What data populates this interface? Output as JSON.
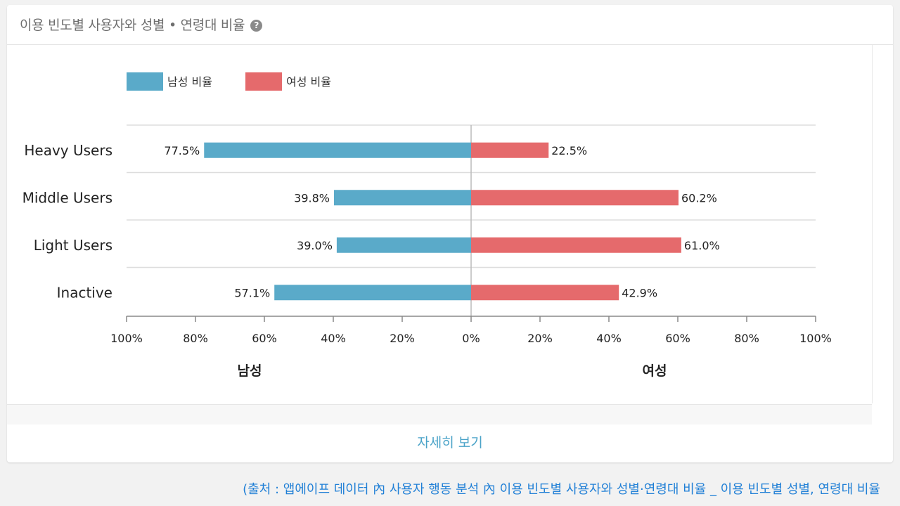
{
  "card": {
    "title": "이용 빈도별 사용자와 성별 • 연령대 비율",
    "help_icon": "question-circle-icon",
    "footer_link": "자세히 보기"
  },
  "source_text": "(출처 : 앱에이프 데이터 內 사용자 행동 분석 內  이용 빈도별 사용자와 성별·연령대 비율 _ 이용 빈도별 성별, 연령대 비율",
  "colors": {
    "male": "#5aaac9",
    "female": "#e56a6c",
    "grid": "#dddddd"
  },
  "chart_data": {
    "type": "bar",
    "orientation": "horizontal-diverging",
    "categories": [
      "Heavy Users",
      "Middle Users",
      "Light Users",
      "Inactive"
    ],
    "series": [
      {
        "name": "남성 비율",
        "values": [
          77.5,
          39.8,
          39.0,
          57.1
        ],
        "labels": [
          "77.5%",
          "39.8%",
          "39.0%",
          "57.1%"
        ]
      },
      {
        "name": "여성 비율",
        "values": [
          22.5,
          60.2,
          61.0,
          42.9
        ],
        "labels": [
          "22.5%",
          "60.2%",
          "61.0%",
          "42.9%"
        ]
      }
    ],
    "x_ticks": [
      "100%",
      "80%",
      "60%",
      "40%",
      "20%",
      "0%",
      "20%",
      "40%",
      "60%",
      "80%",
      "100%"
    ],
    "xlabel_left": "남성",
    "xlabel_right": "여성",
    "xlim": [
      -100,
      100
    ],
    "legend_position": "top-left",
    "grid": true
  }
}
